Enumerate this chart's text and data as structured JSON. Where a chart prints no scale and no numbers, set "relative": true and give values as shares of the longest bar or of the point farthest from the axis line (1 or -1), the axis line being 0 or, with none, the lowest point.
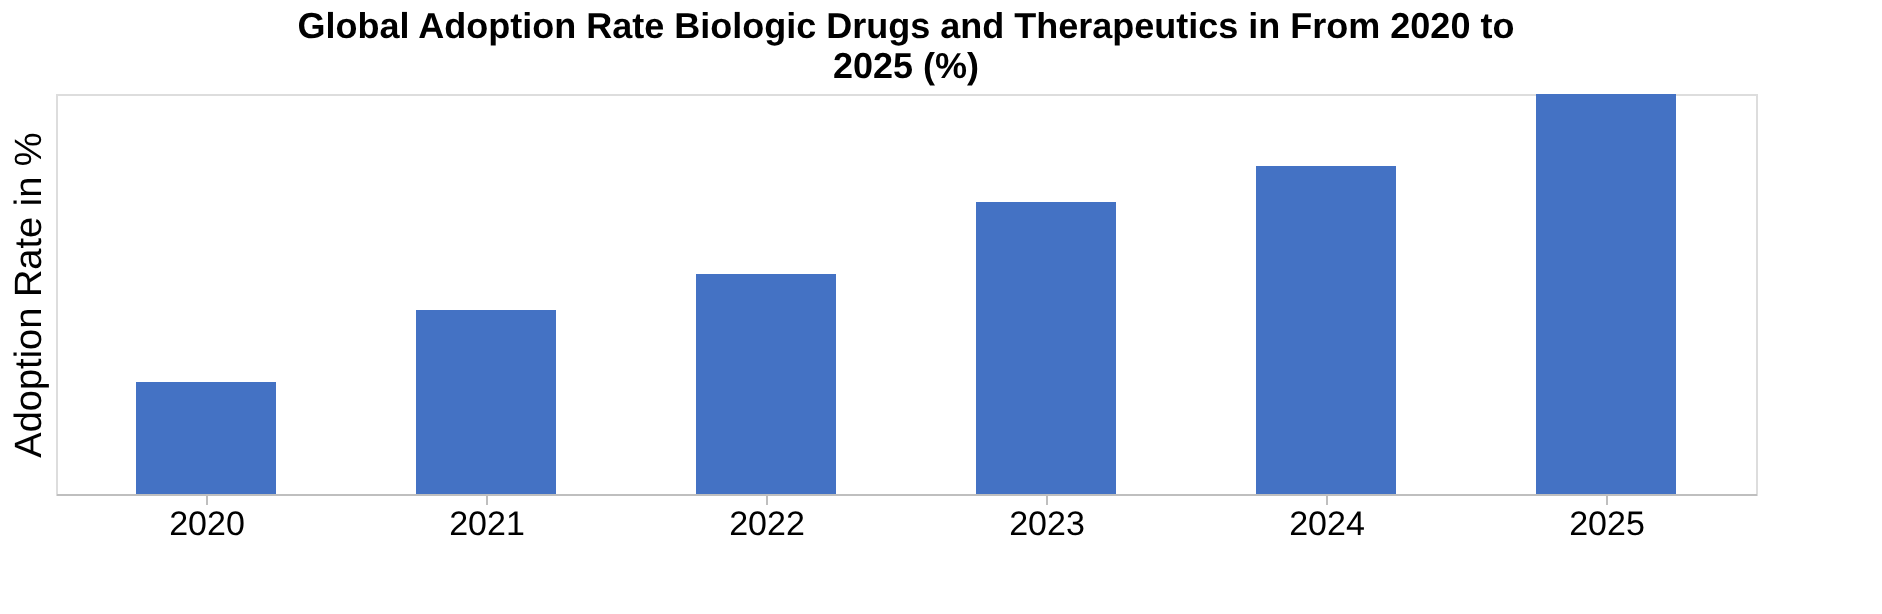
{
  "chart_data": {
    "type": "bar",
    "title": [
      "Global Adoption Rate Biologic Drugs and Therapeutics in From 2020 to",
      "2025 (%)"
    ],
    "ylabel": "Adoption Rate in %",
    "categories": [
      "2020",
      "2021",
      "2022",
      "2023",
      "2024",
      "2025"
    ],
    "values": [
      0.28,
      0.46,
      0.55,
      0.73,
      0.82,
      1
    ],
    "relative": true,
    "color": "#4472c4",
    "grid": false
  }
}
